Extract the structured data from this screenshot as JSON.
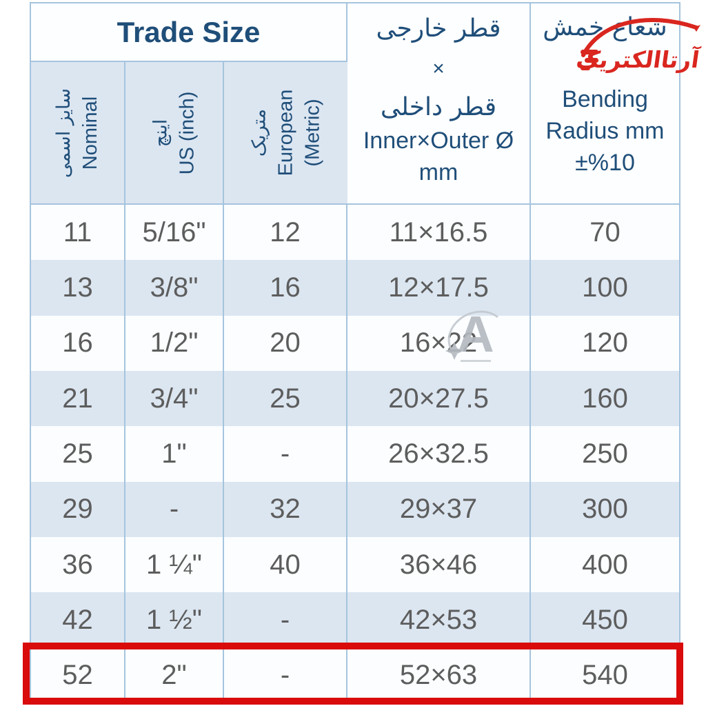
{
  "colors": {
    "navy_text": "#1f4e79",
    "data_gray": "#5d5d5d",
    "row_blue": "#dce6f1",
    "row_white": "#fbfdff",
    "grid_line": "#a5c4de",
    "highlight_red": "#d90b0b",
    "logo_red": "#d9261f",
    "watermark_gray": "#b3b9c0"
  },
  "header": {
    "trade_size": "Trade Size",
    "columns": [
      {
        "fa": "سایز اسمی",
        "en": "Nominal"
      },
      {
        "fa": "اینچ",
        "en": "US (inch)"
      },
      {
        "fa": "متریک",
        "en": "European",
        "en2": "(Metric)"
      }
    ],
    "diameter": {
      "fa_outer": "قطر خارجی",
      "times": "×",
      "fa_inner": "قطر داخلی",
      "en": "Inner×Outer Ø",
      "unit": "mm"
    },
    "bending": {
      "fa": "شعاع خمش",
      "logo_text": "آرتاالکتریک",
      "en1": "Bending",
      "en2": "Radius mm",
      "en3": "±%10"
    }
  },
  "rows": [
    [
      "11",
      "5/16\"",
      "12",
      "11×16.5",
      "70"
    ],
    [
      "13",
      "3/8\"",
      "16",
      "12×17.5",
      "100"
    ],
    [
      "16",
      "1/2\"",
      "20",
      "16×22",
      "120"
    ],
    [
      "21",
      "3/4\"",
      "25",
      "20×27.5",
      "160"
    ],
    [
      "25",
      "1\"",
      "-",
      "26×32.5",
      "250"
    ],
    [
      "29",
      "-",
      "32",
      "29×37",
      "300"
    ],
    [
      "36",
      "1 ¼\"",
      "40",
      "36×46",
      "400"
    ],
    [
      "42",
      "1 ½\"",
      "-",
      "42×53",
      "450"
    ],
    [
      "52",
      "2\"",
      "-",
      "52×63",
      "540"
    ]
  ],
  "highlighted_row_index": 8,
  "watermark": {
    "letter": "A"
  }
}
